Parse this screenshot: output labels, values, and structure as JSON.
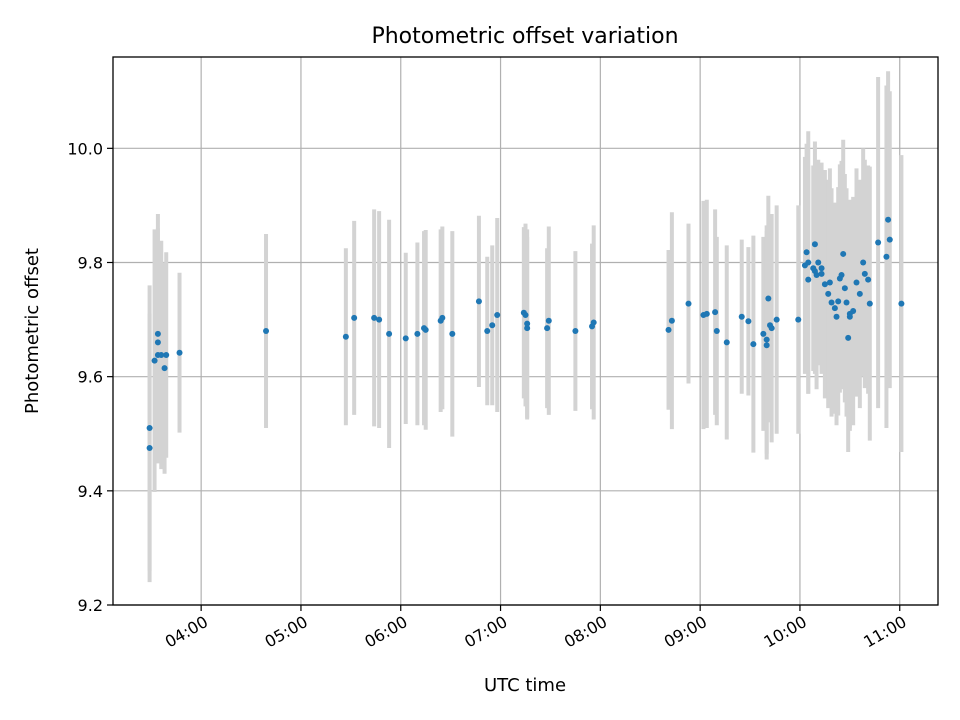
{
  "chart_data": {
    "type": "scatter",
    "title": "Photometric offset variation",
    "xlabel": "UTC time",
    "ylabel": "Photometric offset",
    "x_unit": "UTC time (HH:MM)",
    "xlim": [
      "03:07",
      "11:23"
    ],
    "ylim": [
      9.2,
      10.16
    ],
    "xticks": [
      "04:00",
      "05:00",
      "06:00",
      "07:00",
      "08:00",
      "09:00",
      "10:00",
      "11:00"
    ],
    "yticks": [
      "9.2",
      "9.4",
      "9.6",
      "9.8",
      "10.0"
    ],
    "grid": true,
    "colors": {
      "points": "#1f77b4",
      "errorbars": "#d3d3d3",
      "grid": "#b0b0b0"
    },
    "series": [
      {
        "x": [
          "03:29",
          "03:29",
          "03:32",
          "03:34",
          "03:34",
          "03:34",
          "03:36",
          "03:38",
          "03:39",
          "03:47",
          "04:39",
          "05:27",
          "05:32",
          "05:44",
          "05:47",
          "05:53",
          "06:03",
          "06:10",
          "06:14",
          "06:15",
          "06:24",
          "06:25",
          "06:31",
          "06:47",
          "06:52",
          "06:55",
          "06:58",
          "07:14",
          "07:15",
          "07:16",
          "07:16",
          "07:28",
          "07:29",
          "07:45",
          "07:55",
          "07:56",
          "08:41",
          "08:43",
          "08:53",
          "09:02",
          "09:04",
          "09:09",
          "09:10",
          "09:16",
          "09:25",
          "09:29",
          "09:32",
          "09:38",
          "09:40",
          "09:40",
          "09:41",
          "09:42",
          "09:43",
          "09:46",
          "09:59",
          "10:03",
          "10:04",
          "10:05",
          "10:05",
          "10:08",
          "10:09",
          "10:09",
          "10:10",
          "10:11",
          "10:13",
          "10:13",
          "10:15",
          "10:17",
          "10:18",
          "10:19",
          "10:21",
          "10:22",
          "10:23",
          "10:24",
          "10:25",
          "10:26",
          "10:27",
          "10:28",
          "10:29",
          "10:30",
          "10:30",
          "10:32",
          "10:34",
          "10:36",
          "10:38",
          "10:39",
          "10:41",
          "10:42",
          "10:47",
          "10:52",
          "10:53",
          "10:54",
          "11:01"
        ],
        "y": [
          9.51,
          9.475,
          9.628,
          9.638,
          9.66,
          9.675,
          9.638,
          9.615,
          9.638,
          9.642,
          9.68,
          9.67,
          9.703,
          9.703,
          9.7,
          9.675,
          9.667,
          9.675,
          9.685,
          9.682,
          9.698,
          9.703,
          9.675,
          9.732,
          9.68,
          9.69,
          9.708,
          9.712,
          9.708,
          9.685,
          9.693,
          9.685,
          9.698,
          9.68,
          9.688,
          9.695,
          9.682,
          9.698,
          9.728,
          9.708,
          9.71,
          9.713,
          9.68,
          9.66,
          9.705,
          9.697,
          9.657,
          9.675,
          9.665,
          9.655,
          9.737,
          9.69,
          9.685,
          9.7,
          9.7,
          9.795,
          9.818,
          9.77,
          9.8,
          9.79,
          9.832,
          9.785,
          9.778,
          9.8,
          9.79,
          9.78,
          9.762,
          9.745,
          9.765,
          9.73,
          9.72,
          9.705,
          9.732,
          9.772,
          9.778,
          9.815,
          9.755,
          9.73,
          9.668,
          9.705,
          9.71,
          9.715,
          9.765,
          9.745,
          9.8,
          9.78,
          9.77,
          9.728,
          9.835,
          9.81,
          9.875,
          9.84,
          9.728
        ],
        "err": [
          0.25,
          0.235,
          0.23,
          0.19,
          0.2,
          0.21,
          0.2,
          0.185,
          0.18,
          0.14,
          0.17,
          0.155,
          0.17,
          0.19,
          0.19,
          0.2,
          0.15,
          0.16,
          0.17,
          0.175,
          0.16,
          0.16,
          0.18,
          0.15,
          0.13,
          0.14,
          0.17,
          0.15,
          0.16,
          0.16,
          0.165,
          0.14,
          0.165,
          0.14,
          0.145,
          0.17,
          0.14,
          0.19,
          0.14,
          0.2,
          0.2,
          0.18,
          0.165,
          0.17,
          0.135,
          0.13,
          0.19,
          0.17,
          0.2,
          0.2,
          0.18,
          0.17,
          0.2,
          0.2,
          0.2,
          0.19,
          0.19,
          0.2,
          0.23,
          0.18,
          0.18,
          0.18,
          0.2,
          0.18,
          0.185,
          0.17,
          0.2,
          0.2,
          0.2,
          0.2,
          0.185,
          0.19,
          0.2,
          0.2,
          0.2,
          0.2,
          0.2,
          0.2,
          0.2,
          0.2,
          0.2,
          0.2,
          0.2,
          0.2,
          0.2,
          0.2,
          0.2,
          0.24,
          0.29,
          0.3,
          0.26,
          0.26,
          0.26
        ]
      }
    ]
  }
}
